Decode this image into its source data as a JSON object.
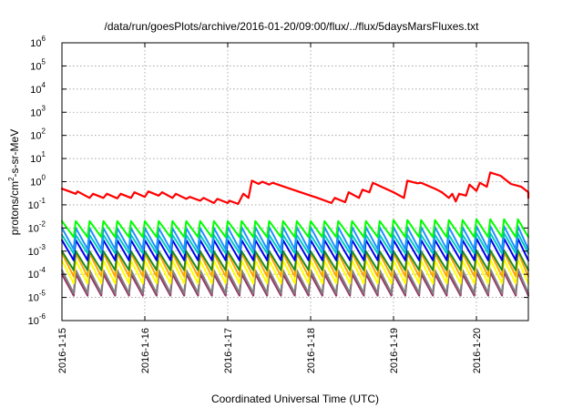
{
  "chart_data": {
    "type": "line",
    "title": "/data/run/goesPlots/archive/2016-01-20/09:00/flux/../flux/5daysMarsFluxes.txt",
    "xlabel": "Coordinated Universal Time (UTC)",
    "ylabel": {
      "prefix": "protons/cm",
      "sup": "2",
      "suffix": "-s-sr-MeV"
    },
    "y_scale": "log",
    "ylim_exponents": [
      -6,
      6
    ],
    "y_ticks": [
      {
        "base": "10",
        "exp": "6"
      },
      {
        "base": "10",
        "exp": "5"
      },
      {
        "base": "10",
        "exp": "4"
      },
      {
        "base": "10",
        "exp": "3"
      },
      {
        "base": "10",
        "exp": "2"
      },
      {
        "base": "10",
        "exp": "1"
      },
      {
        "base": "10",
        "exp": "0"
      },
      {
        "base": "10",
        "exp": "-1"
      },
      {
        "base": "10",
        "exp": "-2"
      },
      {
        "base": "10",
        "exp": "-3"
      },
      {
        "base": "10",
        "exp": "-4"
      },
      {
        "base": "10",
        "exp": "-5"
      },
      {
        "base": "10",
        "exp": "-6"
      }
    ],
    "x_range": [
      "2016-01-15",
      "2016-01-20"
    ],
    "x_ticks": [
      "2016-1-15",
      "2016-1-16",
      "2016-1-17",
      "2016-1-18",
      "2016-1-19",
      "2016-1-20"
    ],
    "grid": true,
    "series": [
      {
        "color": "#ff0000",
        "values": [
          [
            "2016-01-15 00:00",
            0.5
          ],
          [
            "2016-01-15 04:00",
            0.3
          ],
          [
            "2016-01-15 04:30",
            0.38
          ],
          [
            "2016-01-15 08:00",
            0.2
          ],
          [
            "2016-01-15 09:00",
            0.3
          ],
          [
            "2016-01-15 12:00",
            0.2
          ],
          [
            "2016-01-15 13:00",
            0.3
          ],
          [
            "2016-01-15 16:00",
            0.19
          ],
          [
            "2016-01-15 17:00",
            0.3
          ],
          [
            "2016-01-15 20:00",
            0.2
          ],
          [
            "2016-01-15 21:00",
            0.35
          ],
          [
            "2016-01-16 00:00",
            0.22
          ],
          [
            "2016-01-16 01:00",
            0.38
          ],
          [
            "2016-01-16 04:00",
            0.25
          ],
          [
            "2016-01-16 05:00",
            0.35
          ],
          [
            "2016-01-16 08:00",
            0.2
          ],
          [
            "2016-01-16 09:00",
            0.3
          ],
          [
            "2016-01-16 12:00",
            0.18
          ],
          [
            "2016-01-16 13:00",
            0.22
          ],
          [
            "2016-01-16 16:00",
            0.15
          ],
          [
            "2016-01-16 17:00",
            0.2
          ],
          [
            "2016-01-16 20:00",
            0.12
          ],
          [
            "2016-01-16 21:00",
            0.18
          ],
          [
            "2016-01-17 00:00",
            0.12
          ],
          [
            "2016-01-17 00:30",
            0.15
          ],
          [
            "2016-01-17 03:00",
            0.11
          ],
          [
            "2016-01-17 04:30",
            0.3
          ],
          [
            "2016-01-17 06:00",
            0.2
          ],
          [
            "2016-01-17 07:00",
            1.1
          ],
          [
            "2016-01-17 09:00",
            0.8
          ],
          [
            "2016-01-17 10:00",
            1.0
          ],
          [
            "2016-01-17 12:00",
            0.75
          ],
          [
            "2016-01-17 13:00",
            0.9
          ],
          [
            "2016-01-17 18:00",
            0.5
          ],
          [
            "2016-01-18 00:00",
            0.25
          ],
          [
            "2016-01-18 02:00",
            0.2
          ],
          [
            "2016-01-18 06:00",
            0.12
          ],
          [
            "2016-01-18 07:00",
            0.2
          ],
          [
            "2016-01-18 10:00",
            0.13
          ],
          [
            "2016-01-18 11:00",
            0.35
          ],
          [
            "2016-01-18 14:00",
            0.2
          ],
          [
            "2016-01-18 15:00",
            0.45
          ],
          [
            "2016-01-18 17:00",
            0.35
          ],
          [
            "2016-01-18 18:00",
            0.9
          ],
          [
            "2016-01-19 00:00",
            0.35
          ],
          [
            "2016-01-19 03:00",
            0.2
          ],
          [
            "2016-01-19 04:00",
            1.1
          ],
          [
            "2016-01-19 07:00",
            0.85
          ],
          [
            "2016-01-19 08:00",
            0.9
          ],
          [
            "2016-01-19 12:00",
            0.5
          ],
          [
            "2016-01-19 14:00",
            0.35
          ],
          [
            "2016-01-19 16:00",
            0.2
          ],
          [
            "2016-01-19 17:00",
            0.3
          ],
          [
            "2016-01-19 18:00",
            0.14
          ],
          [
            "2016-01-19 19:00",
            0.3
          ],
          [
            "2016-01-19 21:00",
            0.25
          ],
          [
            "2016-01-19 22:00",
            0.75
          ],
          [
            "2016-01-20 00:00",
            0.4
          ],
          [
            "2016-01-20 01:00",
            0.9
          ],
          [
            "2016-01-20 03:00",
            0.6
          ],
          [
            "2016-01-20 04:00",
            2.5
          ],
          [
            "2016-01-20 07:00",
            1.8
          ],
          [
            "2016-01-20 10:00",
            0.8
          ],
          [
            "2016-01-20 13:00",
            0.6
          ],
          [
            "2016-01-20 16:00",
            0.35
          ],
          [
            "2016-01-20 19:00",
            0.25
          ],
          [
            "2016-01-20 21:00",
            0.2
          ]
        ]
      },
      {
        "color": "#00ff00",
        "sawtooth": {
          "start": "2016-01-15 00:00",
          "end": "2016-01-20 21:00",
          "period_hours": 4,
          "peak": [
            0.02,
            0.02,
            0.02,
            0.02,
            0.022,
            0.024,
            0.028
          ],
          "trough": 0.004
        }
      },
      {
        "color": "#1e90ff",
        "sawtooth": {
          "start": "2016-01-15 00:00",
          "end": "2016-01-20 21:00",
          "period_hours": 4,
          "peak": [
            0.01,
            0.01,
            0.011,
            0.011,
            0.011,
            0.012,
            0.013
          ],
          "trough": 0.0012
        }
      },
      {
        "color": "#00ccc0",
        "sawtooth": {
          "start": "2016-01-15 00:00",
          "end": "2016-01-20 21:00",
          "period_hours": 4,
          "peak": [
            0.005,
            0.005,
            0.005,
            0.005,
            0.005,
            0.006,
            0.007
          ],
          "trough": 0.0008
        }
      },
      {
        "color": "#0000ee",
        "sawtooth": {
          "start": "2016-01-15 00:00",
          "end": "2016-01-20 21:00",
          "period_hours": 4,
          "peak": [
            0.003,
            0.003,
            0.003,
            0.003,
            0.003,
            0.0035,
            0.004
          ],
          "trough": 0.0004
        }
      },
      {
        "color": "#228b22",
        "sawtooth": {
          "start": "2016-01-15 00:00",
          "end": "2016-01-20 21:00",
          "period_hours": 4,
          "peak": [
            0.001,
            0.001,
            0.001,
            0.001,
            0.001,
            0.0011,
            0.0012
          ],
          "trough": 0.00015
        }
      },
      {
        "color": "#ffa500",
        "sawtooth": {
          "start": "2016-01-15 00:00",
          "end": "2016-01-20 21:00",
          "period_hours": 4,
          "peak": [
            0.0008,
            0.0008,
            0.0008,
            0.0008,
            0.0008,
            0.0009,
            0.001
          ],
          "trough": 8e-05
        }
      },
      {
        "color": "#ffff00",
        "sawtooth": {
          "start": "2016-01-15 00:00",
          "end": "2016-01-20 21:00",
          "period_hours": 4,
          "peak": [
            0.0004,
            0.0004,
            0.0004,
            0.0004,
            0.0004,
            0.00045,
            0.0005
          ],
          "trough": 4e-05
        }
      },
      {
        "color": "#808080",
        "sawtooth": {
          "start": "2016-01-15 00:00",
          "end": "2016-01-20 21:00",
          "period_hours": 4,
          "peak": [
            0.00015,
            0.00015,
            0.00015,
            0.00015,
            0.00015,
            0.00017,
            0.0002
          ],
          "trough": 1.5e-05
        }
      },
      {
        "color": "#993366",
        "sawtooth": {
          "start": "2016-01-15 00:00",
          "end": "2016-01-20 21:00",
          "period_hours": 4,
          "peak": [
            0.0001,
            0.0001,
            0.0001,
            0.0001,
            0.0001,
            0.00012,
            0.00015
          ],
          "trough": 1.2e-05
        }
      }
    ]
  }
}
